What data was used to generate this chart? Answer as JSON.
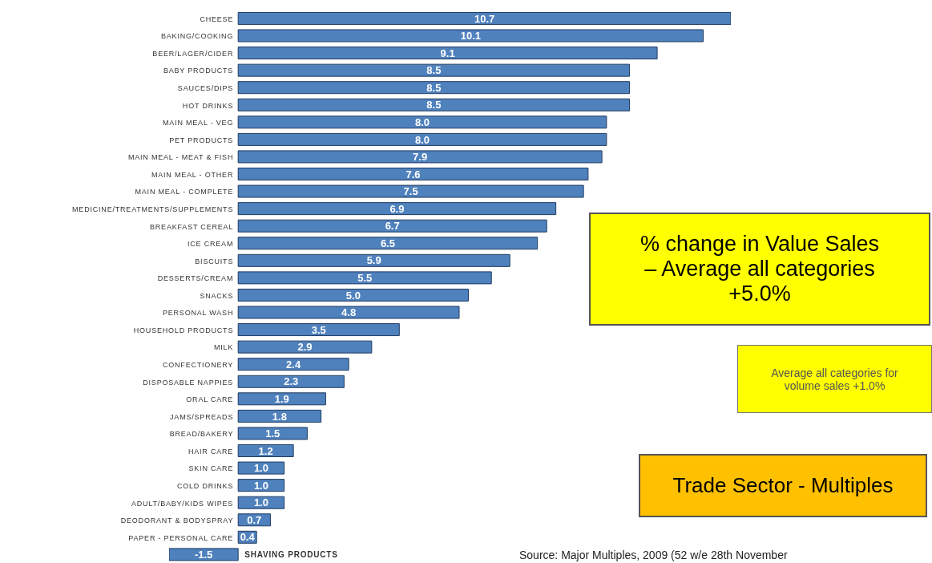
{
  "chart_data": {
    "type": "bar",
    "orientation": "horizontal",
    "color": "#4f81bd",
    "value_labels": [
      "10.7",
      "10.1",
      "9.1",
      "8.5",
      "8.5",
      "8.5",
      "8.0",
      "8.0",
      "7.9",
      "7.6",
      "7.5",
      "6.9",
      "6.7",
      "6.5",
      "5.9",
      "5.5",
      "5.0",
      "4.8",
      "3.5",
      "2.9",
      "2.4",
      "2.3",
      "1.9",
      "1.8",
      "1.5",
      "1.2",
      "1.0",
      "1.0",
      "1.0",
      "0.7",
      "0.4",
      "-1.5"
    ],
    "categories": [
      "CHEESE",
      "BAKING/COOKING",
      "BEER/LAGER/CIDER",
      "BABY PRODUCTS",
      "SAUCES/DIPS",
      "HOT DRINKS",
      "MAIN MEAL - VEG",
      "PET PRODUCTS",
      "MAIN MEAL - MEAT & FISH",
      "MAIN MEAL - OTHER",
      "MAIN MEAL - COMPLETE",
      "MEDICINE/TREATMENTS/SUPPLEMENTS",
      "BREAKFAST CEREAL",
      "ICE CREAM",
      "BISCUITS",
      "DESSERTS/CREAM",
      "SNACKS",
      "PERSONAL WASH",
      "HOUSEHOLD PRODUCTS",
      "MILK",
      "CONFECTIONERY",
      "DISPOSABLE NAPPIES",
      "ORAL CARE",
      "JAMS/SPREADS",
      "BREAD/BAKERY",
      "HAIR CARE",
      "SKIN CARE",
      "COLD DRINKS",
      "ADULT/BABY/KIDS WIPES",
      "DEODORANT & BODYSPRAY",
      "PAPER - PERSONAL CARE",
      "SHAVING PRODUCTS"
    ],
    "values": [
      10.7,
      10.1,
      9.1,
      8.5,
      8.5,
      8.5,
      8.0,
      8.0,
      7.9,
      7.6,
      7.5,
      6.9,
      6.7,
      6.5,
      5.9,
      5.5,
      5.0,
      4.8,
      3.5,
      2.9,
      2.4,
      2.3,
      1.9,
      1.8,
      1.5,
      1.2,
      1.0,
      1.0,
      1.0,
      0.7,
      0.4,
      -1.5
    ],
    "annotations": [
      "% change in Value Sales – Average all categories +5.0%",
      "Average all categories for volume sales +1.0%",
      "Trade Sector - Multiples",
      "Source: Major Multiples, 2009 (52 w/e 28th November"
    ]
  }
}
